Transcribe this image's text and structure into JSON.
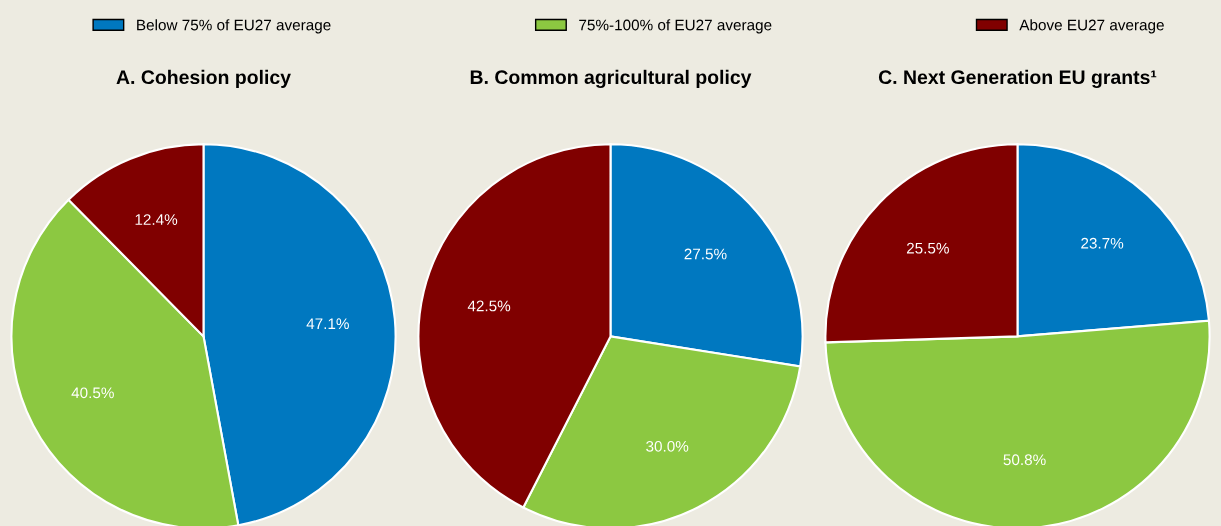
{
  "chart_data": [
    {
      "type": "pie",
      "title": "A. Cohesion policy",
      "categories": [
        "Below 75% of EU27 average",
        "75%-100% of EU27 average",
        "Above EU27 average"
      ],
      "values": [
        47.1,
        40.5,
        12.4
      ],
      "value_labels": [
        "47.1%",
        "40.5%",
        "12.4%"
      ],
      "colors": [
        "#0078c0",
        "#8cc841",
        "#800000"
      ],
      "legend": "top"
    },
    {
      "type": "pie",
      "title": "B. Common agricultural policy",
      "categories": [
        null,
        null,
        null
      ],
      "values": [
        27.5,
        30.0,
        42.5
      ],
      "value_labels": [
        "27.5%",
        "30.0%",
        "42.5%"
      ],
      "colors": [
        "#0078c0",
        "#8cc841",
        "#800000"
      ]
    },
    {
      "type": "pie",
      "title": "C. Next Generation EU grants¹",
      "categories": [
        null,
        null,
        null
      ],
      "values": [
        23.7,
        50.8,
        25.5
      ],
      "value_labels": [
        "23.7%",
        "50.8%",
        "25.5%"
      ],
      "colors": [
        "#0078c0",
        "#8cc841",
        "#800000"
      ]
    }
  ]
}
